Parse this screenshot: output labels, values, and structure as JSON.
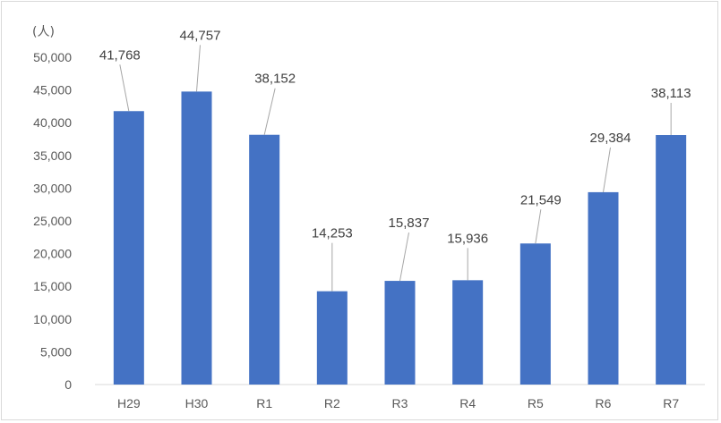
{
  "chart_data": {
    "type": "bar",
    "unit_label": "(人)",
    "categories": [
      "H29",
      "H30",
      "R1",
      "R2",
      "R3",
      "R4",
      "R5",
      "R6",
      "R7"
    ],
    "values": [
      41768,
      44757,
      38152,
      14253,
      15837,
      15936,
      21549,
      29384,
      38113
    ],
    "data_labels": [
      "41,768",
      "44,757",
      "38,152",
      "14,253",
      "15,837",
      "15,936",
      "21,549",
      "29,384",
      "38,113"
    ],
    "y_ticks": [
      "0",
      "5,000",
      "10,000",
      "15,000",
      "20,000",
      "25,000",
      "30,000",
      "35,000",
      "40,000",
      "45,000",
      "50,000"
    ],
    "ylim": [
      0,
      50000
    ],
    "grid": false,
    "bar_color": "#4472c4"
  }
}
